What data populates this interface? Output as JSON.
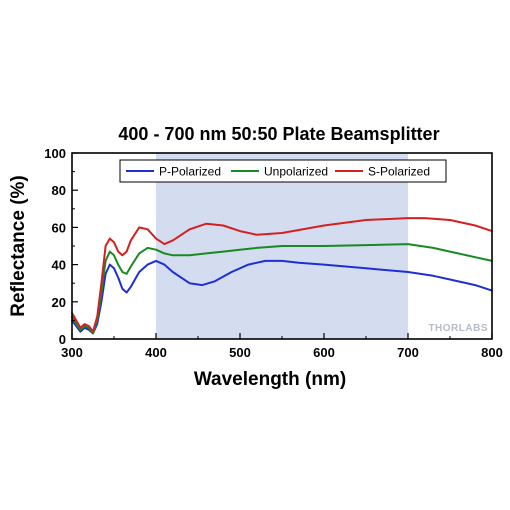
{
  "chart_data": {
    "type": "line",
    "title": "400 - 700 nm 50:50 Plate Beamsplitter",
    "xlabel": "Wavelength (nm)",
    "ylabel": "Reflectance (%)",
    "xlim": [
      300,
      800
    ],
    "ylim": [
      0,
      100
    ],
    "xticks": [
      300,
      400,
      500,
      600,
      700,
      800
    ],
    "yticks": [
      0,
      20,
      40,
      60,
      80,
      100
    ],
    "grid": false,
    "legend_position": "top",
    "highlight_band": [
      400,
      700
    ],
    "highlight_color": "#d4dcf0",
    "watermark": "THORLABS",
    "series": [
      {
        "name": "P-Polarized",
        "color": "#1f2fd6",
        "x": [
          300,
          305,
          310,
          315,
          320,
          325,
          330,
          335,
          340,
          345,
          350,
          355,
          360,
          365,
          370,
          380,
          390,
          400,
          410,
          420,
          440,
          455,
          470,
          490,
          510,
          530,
          550,
          570,
          600,
          650,
          700,
          730,
          750,
          780,
          800
        ],
        "y": [
          10,
          7,
          4,
          6,
          5,
          3,
          8,
          20,
          35,
          40,
          38,
          33,
          27,
          25,
          28,
          36,
          40,
          42,
          40,
          36,
          30,
          29,
          31,
          36,
          40,
          42,
          42,
          41,
          40,
          38,
          36,
          34,
          32,
          29,
          26
        ]
      },
      {
        "name": "Unpolarized",
        "color": "#188a22",
        "x": [
          300,
          305,
          310,
          315,
          320,
          325,
          330,
          335,
          340,
          345,
          350,
          355,
          360,
          365,
          370,
          380,
          390,
          400,
          410,
          420,
          440,
          460,
          480,
          500,
          520,
          550,
          600,
          650,
          700,
          730,
          750,
          780,
          800
        ],
        "y": [
          12,
          8,
          5,
          7,
          6,
          3,
          10,
          25,
          42,
          47,
          45,
          40,
          36,
          35,
          39,
          46,
          49,
          48,
          46,
          45,
          45,
          46,
          47,
          48,
          49,
          50,
          50,
          50.5,
          51,
          49,
          47,
          44,
          42
        ]
      },
      {
        "name": "S-Polarized",
        "color": "#d42020",
        "x": [
          300,
          305,
          310,
          315,
          320,
          325,
          330,
          335,
          340,
          345,
          350,
          355,
          360,
          365,
          370,
          380,
          390,
          400,
          410,
          420,
          440,
          460,
          480,
          500,
          520,
          550,
          600,
          650,
          700,
          720,
          750,
          780,
          800
        ],
        "y": [
          14,
          10,
          6,
          8,
          7,
          4,
          12,
          30,
          50,
          54,
          52,
          47,
          45,
          47,
          53,
          60,
          59,
          54,
          51,
          53,
          59,
          62,
          61,
          58,
          56,
          57,
          61,
          64,
          65,
          65,
          64,
          61,
          58
        ]
      }
    ]
  }
}
